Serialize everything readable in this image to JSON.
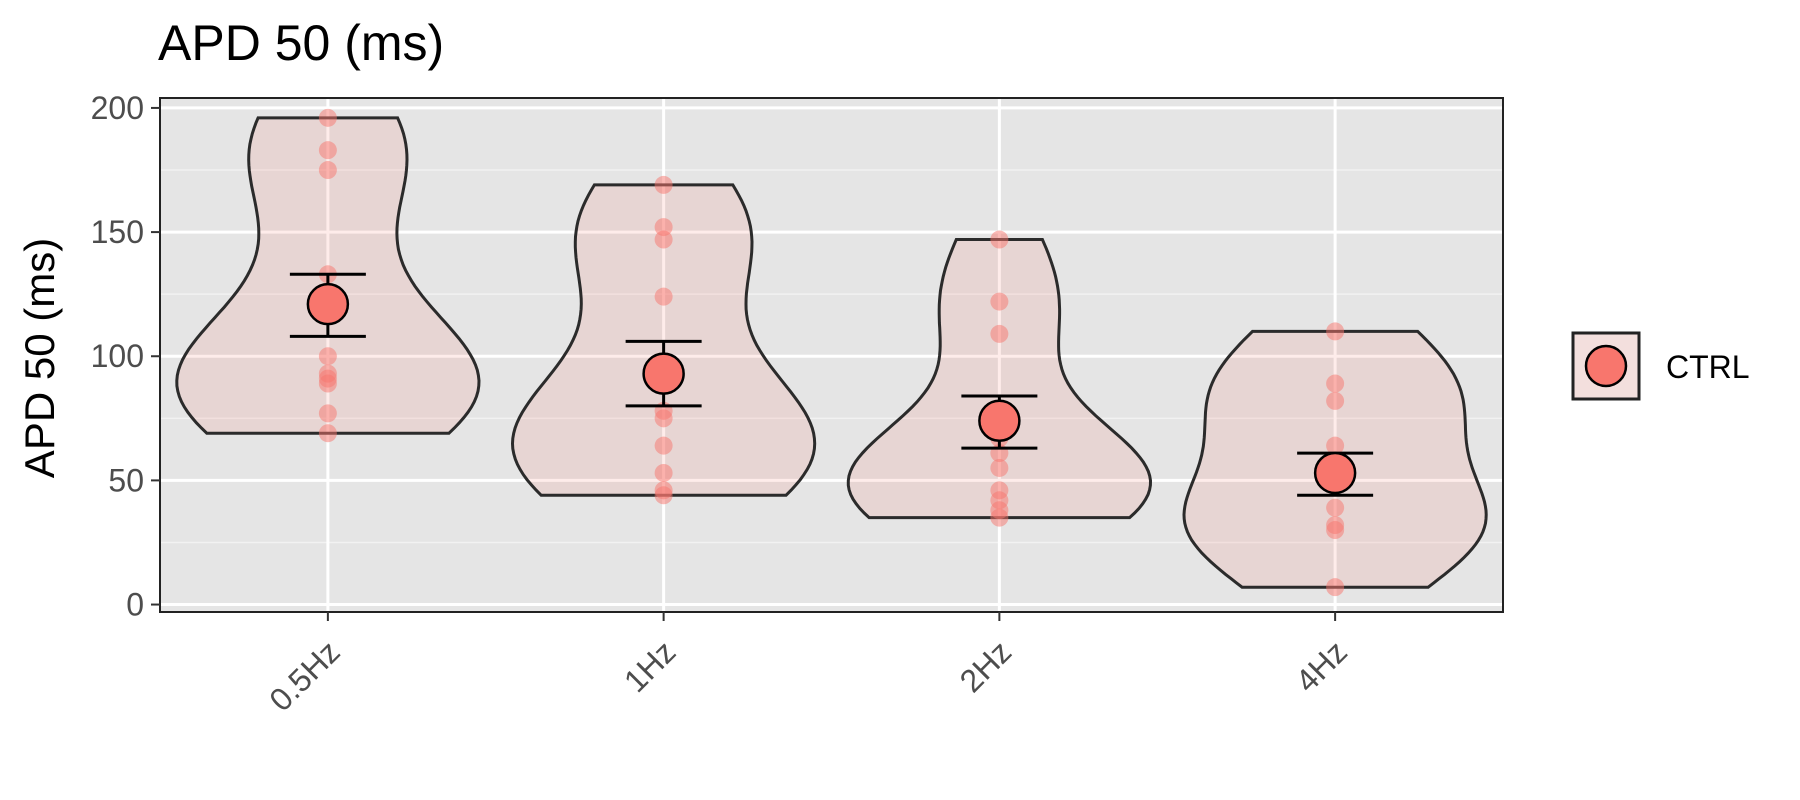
{
  "chart_data": {
    "type": "violin",
    "title": "APD 50 (ms)",
    "ylabel": "APD 50 (ms)",
    "xlabel": "",
    "categories": [
      "0.5Hz",
      "1Hz",
      "2Hz",
      "4Hz"
    ],
    "ylim": [
      -3,
      204
    ],
    "yticks": [
      0,
      50,
      100,
      150,
      200
    ],
    "grid": true,
    "legend": {
      "position": "right",
      "entries": [
        "CTRL"
      ]
    },
    "series": [
      {
        "name": "CTRL",
        "color": "#f8766d",
        "points": [
          [
            196,
            183,
            175,
            133,
            100,
            93,
            91,
            89,
            77,
            69
          ],
          [
            169,
            152,
            147,
            124,
            88,
            78,
            75,
            64,
            53,
            46,
            44
          ],
          [
            147,
            122,
            109,
            67,
            61,
            55,
            46,
            42,
            38,
            35
          ],
          [
            110,
            89,
            82,
            64,
            39,
            32,
            30,
            7
          ]
        ],
        "mean": [
          121,
          93,
          74,
          53
        ],
        "error_low": [
          108,
          80,
          63,
          44
        ],
        "error_high": [
          133,
          106,
          84,
          61
        ]
      }
    ]
  }
}
